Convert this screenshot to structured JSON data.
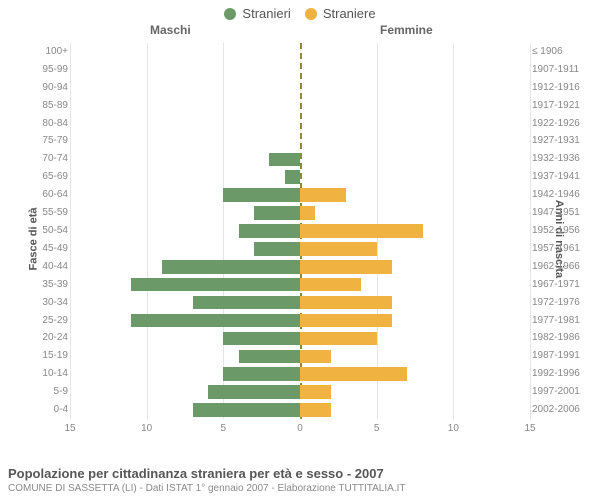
{
  "legend": {
    "male": {
      "label": "Stranieri",
      "color": "#6b9a68"
    },
    "female": {
      "label": "Straniere",
      "color": "#f0b342"
    }
  },
  "headers": {
    "male": "Maschi",
    "female": "Femmine"
  },
  "axis_titles": {
    "left": "Fasce di età",
    "right": "Anni di nascita"
  },
  "chart": {
    "type": "population-pyramid",
    "xmax": 15,
    "xticks": [
      15,
      10,
      5,
      0,
      5,
      10,
      15
    ],
    "background_color": "#ffffff",
    "grid_color": "#e5e5e5",
    "center_line_color": "#8a8a3a",
    "male_color": "#6b9a68",
    "female_color": "#f0b342",
    "bar_height_ratio": 0.76,
    "label_fontsize": 10,
    "rows": [
      {
        "age": "100+",
        "birth": "≤ 1906",
        "m": 0,
        "f": 0
      },
      {
        "age": "95-99",
        "birth": "1907-1911",
        "m": 0,
        "f": 0
      },
      {
        "age": "90-94",
        "birth": "1912-1916",
        "m": 0,
        "f": 0
      },
      {
        "age": "85-89",
        "birth": "1917-1921",
        "m": 0,
        "f": 0
      },
      {
        "age": "80-84",
        "birth": "1922-1926",
        "m": 0,
        "f": 0
      },
      {
        "age": "75-79",
        "birth": "1927-1931",
        "m": 0,
        "f": 0
      },
      {
        "age": "70-74",
        "birth": "1932-1936",
        "m": 2,
        "f": 0
      },
      {
        "age": "65-69",
        "birth": "1937-1941",
        "m": 1,
        "f": 0
      },
      {
        "age": "60-64",
        "birth": "1942-1946",
        "m": 5,
        "f": 3
      },
      {
        "age": "55-59",
        "birth": "1947-1951",
        "m": 3,
        "f": 1
      },
      {
        "age": "50-54",
        "birth": "1952-1956",
        "m": 4,
        "f": 8
      },
      {
        "age": "45-49",
        "birth": "1957-1961",
        "m": 3,
        "f": 5
      },
      {
        "age": "40-44",
        "birth": "1962-1966",
        "m": 9,
        "f": 6
      },
      {
        "age": "35-39",
        "birth": "1967-1971",
        "m": 11,
        "f": 4
      },
      {
        "age": "30-34",
        "birth": "1972-1976",
        "m": 7,
        "f": 6
      },
      {
        "age": "25-29",
        "birth": "1977-1981",
        "m": 11,
        "f": 6
      },
      {
        "age": "20-24",
        "birth": "1982-1986",
        "m": 5,
        "f": 5
      },
      {
        "age": "15-19",
        "birth": "1987-1991",
        "m": 4,
        "f": 2
      },
      {
        "age": "10-14",
        "birth": "1992-1996",
        "m": 5,
        "f": 7
      },
      {
        "age": "5-9",
        "birth": "1997-2001",
        "m": 6,
        "f": 2
      },
      {
        "age": "0-4",
        "birth": "2002-2006",
        "m": 7,
        "f": 2
      }
    ]
  },
  "footer": {
    "title": "Popolazione per cittadinanza straniera per età e sesso - 2007",
    "subtitle": "COMUNE DI SASSETTA (LI) - Dati ISTAT 1° gennaio 2007 - Elaborazione TUTTITALIA.IT"
  }
}
